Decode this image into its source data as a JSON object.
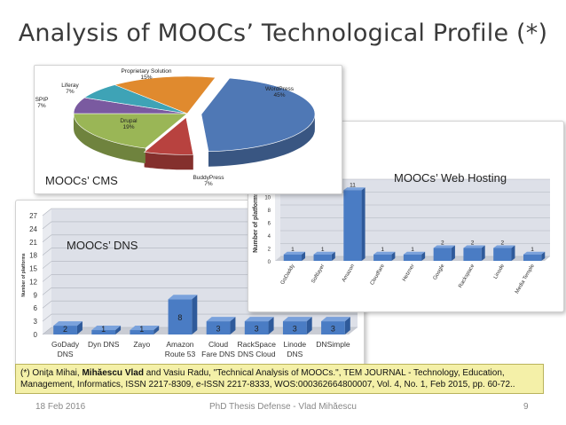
{
  "slide": {
    "title": "Analysis of  MOOCs’ Technological Profile (*)",
    "citation_pre": "(*) Oniţa Mihai, ",
    "citation_bold": "Mihăescu Vlad",
    "citation_post": " and Vasiu Radu, \"Technical Analysis of MOOCs.\", TEM JOURNAL - Technology, Education, Management, Informatics, ISSN 2217-8309, e-ISSN 2217-8333, WOS:000362664800007, Vol. 4, No. 1, Feb 2015, pp. 60-72..",
    "footer_date": "18 Feb 2016",
    "footer_center": "PhD Thesis Defense - Vlad Mihăescu",
    "footer_page": "9",
    "colors": {
      "bar": "#4a7cc4",
      "bar_dark": "#2f5a9a",
      "wall": "#dde0e8",
      "citation_bg": "#f4f0a8"
    }
  },
  "chart_data": [
    {
      "type": "bar",
      "panel_label": "MOOCs’ DNS",
      "ylabel": "Number of platforms",
      "ylim": [
        0,
        27
      ],
      "yticks": [
        "0",
        "3",
        "6",
        "9",
        "12",
        "15",
        "18",
        "21",
        "24",
        "27"
      ],
      "categories": [
        [
          "GoDady",
          "DNS"
        ],
        [
          "Dyn DNS"
        ],
        [
          "Zayo"
        ],
        [
          "Amazon",
          "Route 53"
        ],
        [
          "Cloud",
          "Fare DNS"
        ],
        [
          "RackSpace",
          "DNS Cloud"
        ],
        [
          "Linode",
          "DNS"
        ],
        [
          "DNSimple"
        ]
      ],
      "values": [
        2,
        1,
        1,
        8,
        3,
        3,
        3,
        3
      ],
      "labels": [
        "2",
        "1",
        "1",
        "8",
        "3",
        "3",
        "3",
        "3"
      ]
    },
    {
      "type": "bar",
      "panel_label": "MOOCs’ Web Hosting",
      "ylabel": "Number of platforms",
      "ylim": [
        0,
        12
      ],
      "yticks": [
        "0",
        "2",
        "4",
        "6",
        "8",
        "10",
        "12"
      ],
      "categories": [
        "GoDaddy",
        "Softlayer",
        "Amazon",
        "Cloudfare",
        "Hetzner",
        "Google",
        "Rackspace",
        "Linode",
        "Media Temple"
      ],
      "values": [
        1,
        1,
        11,
        1,
        1,
        2,
        2,
        2,
        1
      ],
      "labels": [
        "1",
        "1",
        "11",
        "1",
        "1",
        "2",
        "2",
        "2",
        "1"
      ]
    },
    {
      "type": "pie",
      "panel_label": "MOOCs’ CMS",
      "slices": [
        {
          "name": "WordPress",
          "value": 45,
          "label": "45%",
          "color": "#4f78b5"
        },
        {
          "name": "BuddyPress",
          "value": 7,
          "label": "7%",
          "color": "#b8423f"
        },
        {
          "name": "Drupal",
          "value": 19,
          "label": "19%",
          "color": "#9ab656"
        },
        {
          "name": "SPIP",
          "value": 7,
          "label": "7%",
          "color": "#7a5aa0"
        },
        {
          "name": "Liferay",
          "value": 7,
          "label": "7%",
          "color": "#3ea3b6"
        },
        {
          "name": "Proprietary Solution",
          "value": 15,
          "label": "15%",
          "color": "#e08a2e"
        }
      ]
    }
  ]
}
